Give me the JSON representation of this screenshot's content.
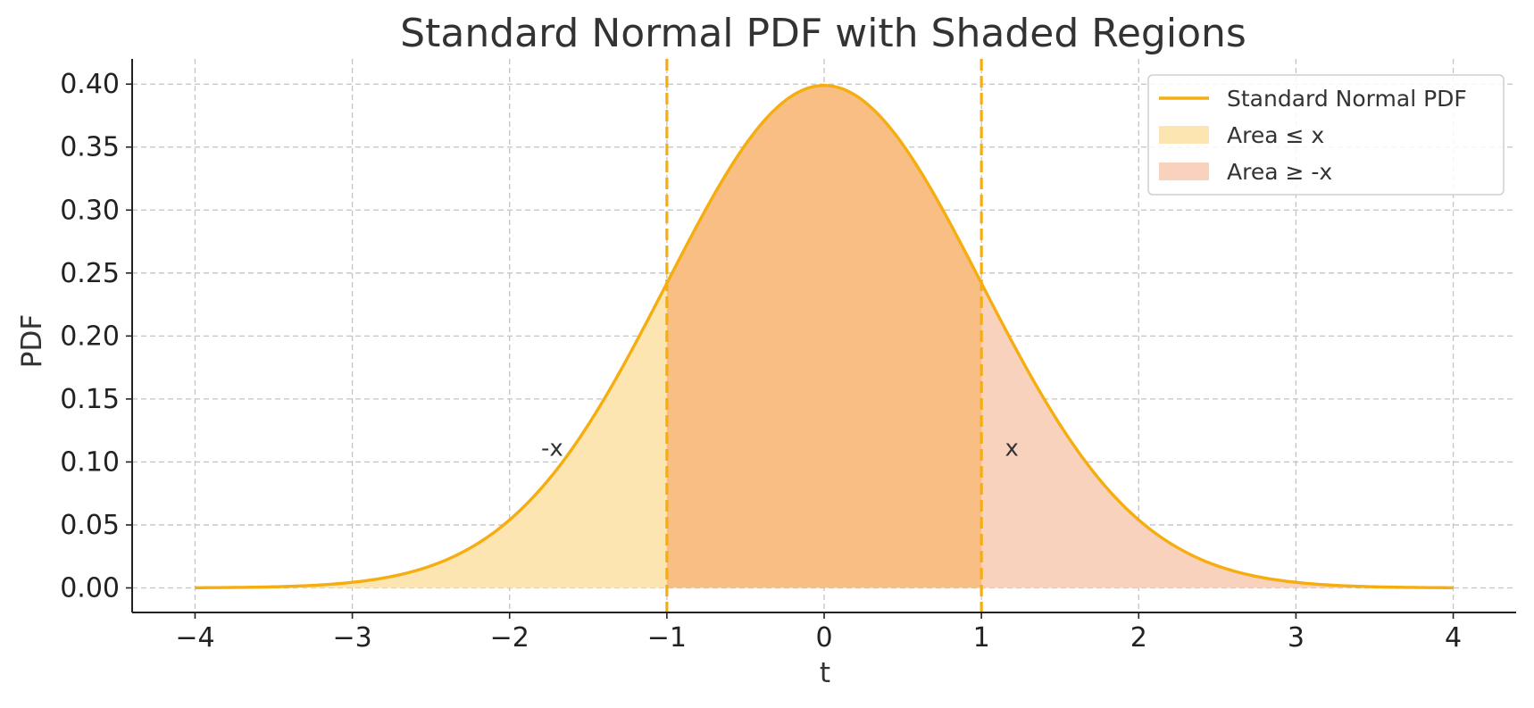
{
  "chart_data": {
    "type": "area",
    "title": "Standard Normal PDF with Shaded Regions",
    "xlabel": "t",
    "ylabel": "PDF",
    "xlim": [
      -4.4,
      4.4
    ],
    "ylim": [
      -0.0195,
      0.42
    ],
    "x_ticks": [
      -4,
      -3,
      -2,
      -1,
      0,
      1,
      2,
      3,
      4
    ],
    "x_tick_labels": [
      "−4",
      "−3",
      "−2",
      "−1",
      "0",
      "1",
      "2",
      "3",
      "4"
    ],
    "y_ticks": [
      0.0,
      0.05,
      0.1,
      0.15,
      0.2,
      0.25,
      0.3,
      0.35,
      0.4
    ],
    "y_tick_labels": [
      "0.00",
      "0.05",
      "0.10",
      "0.15",
      "0.20",
      "0.25",
      "0.30",
      "0.35",
      "0.40"
    ],
    "grid": true,
    "legend_position": "top-right",
    "x_value": 1,
    "curve": {
      "name": "Standard Normal PDF",
      "color": "#f5ad0f",
      "x": [
        -4.0,
        -3.8,
        -3.6,
        -3.4,
        -3.2,
        -3.0,
        -2.8,
        -2.6,
        -2.4,
        -2.2,
        -2.0,
        -1.8,
        -1.6,
        -1.4,
        -1.2,
        -1.0,
        -0.8,
        -0.6,
        -0.4,
        -0.2,
        0.0,
        0.2,
        0.4,
        0.6,
        0.8,
        1.0,
        1.2,
        1.4,
        1.6,
        1.8,
        2.0,
        2.2,
        2.4,
        2.6,
        2.8,
        3.0,
        3.2,
        3.4,
        3.6,
        3.8,
        4.0
      ],
      "y": [
        0.0001,
        0.0003,
        0.0006,
        0.0012,
        0.0024,
        0.0044,
        0.0079,
        0.0136,
        0.0224,
        0.0355,
        0.054,
        0.079,
        0.1109,
        0.1497,
        0.1942,
        0.242,
        0.2897,
        0.3332,
        0.3683,
        0.391,
        0.3989,
        0.391,
        0.3683,
        0.3332,
        0.2897,
        0.242,
        0.1942,
        0.1497,
        0.1109,
        0.079,
        0.054,
        0.0355,
        0.0224,
        0.0136,
        0.0079,
        0.0044,
        0.0024,
        0.0012,
        0.0006,
        0.0003,
        0.0001
      ]
    },
    "regions": [
      {
        "name": "Area ≤ x",
        "from": -4,
        "to": 1,
        "color": "#fde5b1"
      },
      {
        "name": "Area ≥ -x",
        "from": -1,
        "to": 4,
        "color": "#f9d2bd"
      }
    ],
    "overlap_color": "#f8be84",
    "vlines": [
      {
        "x": -1,
        "color": "#f5ad0f"
      },
      {
        "x": 1,
        "color": "#f5ad0f"
      }
    ],
    "annotations": [
      {
        "text": "-x",
        "x": -1.8,
        "y": 0.105
      },
      {
        "text": "x",
        "x": 1.15,
        "y": 0.105
      }
    ],
    "legend": [
      {
        "label": "Standard Normal PDF",
        "kind": "line",
        "color": "#f5ad0f"
      },
      {
        "label": "Area ≤ x",
        "kind": "patch",
        "color": "#fde5b1"
      },
      {
        "label": "Area ≥ -x",
        "kind": "patch",
        "color": "#f9d2bd"
      }
    ]
  }
}
